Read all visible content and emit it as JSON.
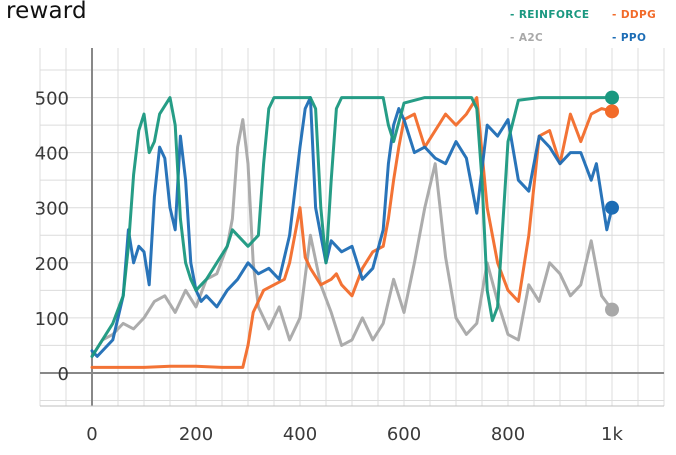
{
  "chart_data": {
    "type": "line",
    "title": "reward",
    "xlabel": "",
    "ylabel": "",
    "x_ticks": [
      0,
      200,
      400,
      600,
      800,
      1000
    ],
    "x_tick_labels": [
      "0",
      "200",
      "400",
      "600",
      "800",
      "1k"
    ],
    "y_ticks": [
      0,
      100,
      200,
      300,
      400,
      500
    ],
    "y_tick_labels": [
      "0",
      "100",
      "200",
      "300",
      "400",
      "500"
    ],
    "xlim": [
      -100,
      1100
    ],
    "ylim": [
      -60,
      590
    ],
    "grid": true,
    "legend_position": "top-right",
    "series": [
      {
        "name": "REINFORCE",
        "color": "#1a9880",
        "x": [
          0,
          20,
          40,
          60,
          70,
          80,
          90,
          100,
          110,
          120,
          130,
          150,
          160,
          170,
          180,
          190,
          200,
          220,
          240,
          260,
          270,
          280,
          290,
          300,
          320,
          330,
          340,
          350,
          360,
          380,
          400,
          420,
          430,
          440,
          450,
          460,
          470,
          480,
          500,
          510,
          520,
          540,
          560,
          570,
          580,
          600,
          640,
          680,
          700,
          720,
          730,
          740,
          750,
          760,
          770,
          780,
          800,
          820,
          860,
          900,
          950,
          1000
        ],
        "values": [
          30,
          60,
          90,
          140,
          230,
          360,
          440,
          470,
          400,
          420,
          470,
          500,
          450,
          280,
          200,
          170,
          150,
          170,
          200,
          230,
          260,
          250,
          240,
          230,
          250,
          380,
          480,
          500,
          500,
          500,
          500,
          500,
          480,
          300,
          200,
          350,
          480,
          500,
          500,
          500,
          500,
          500,
          500,
          450,
          420,
          490,
          500,
          500,
          500,
          500,
          500,
          480,
          350,
          150,
          95,
          120,
          420,
          495,
          500,
          500,
          500,
          500
        ]
      },
      {
        "name": "DDPG",
        "color": "#f26b2a",
        "x": [
          0,
          50,
          100,
          150,
          200,
          250,
          290,
          300,
          310,
          330,
          350,
          370,
          380,
          390,
          400,
          410,
          420,
          440,
          460,
          470,
          480,
          500,
          520,
          540,
          560,
          570,
          580,
          590,
          600,
          620,
          640,
          660,
          680,
          700,
          720,
          740,
          760,
          780,
          800,
          820,
          840,
          860,
          880,
          900,
          920,
          940,
          960,
          980,
          1000
        ],
        "values": [
          10,
          10,
          10,
          12,
          12,
          10,
          10,
          50,
          110,
          150,
          160,
          170,
          200,
          250,
          300,
          210,
          190,
          160,
          170,
          180,
          160,
          140,
          190,
          220,
          230,
          280,
          350,
          410,
          460,
          470,
          410,
          440,
          470,
          450,
          470,
          500,
          300,
          200,
          150,
          130,
          250,
          430,
          440,
          380,
          470,
          420,
          470,
          480,
          475
        ]
      },
      {
        "name": "A2C",
        "color": "#a8a8a8",
        "x": [
          0,
          20,
          40,
          60,
          80,
          100,
          120,
          140,
          160,
          180,
          200,
          220,
          240,
          260,
          270,
          280,
          290,
          300,
          310,
          320,
          340,
          360,
          380,
          400,
          420,
          440,
          460,
          480,
          500,
          520,
          540,
          560,
          580,
          600,
          620,
          640,
          660,
          680,
          700,
          720,
          740,
          760,
          780,
          800,
          820,
          840,
          860,
          880,
          900,
          920,
          940,
          960,
          980,
          1000
        ],
        "values": [
          30,
          60,
          70,
          90,
          80,
          100,
          130,
          140,
          110,
          150,
          120,
          170,
          180,
          230,
          280,
          410,
          460,
          380,
          200,
          120,
          80,
          120,
          60,
          100,
          250,
          160,
          110,
          50,
          60,
          100,
          60,
          90,
          170,
          110,
          200,
          300,
          380,
          210,
          100,
          70,
          90,
          200,
          130,
          70,
          60,
          160,
          130,
          200,
          180,
          140,
          160,
          240,
          140,
          115
        ]
      },
      {
        "name": "PPO",
        "color": "#1d6db5",
        "x": [
          0,
          10,
          20,
          40,
          60,
          70,
          80,
          90,
          100,
          110,
          120,
          130,
          140,
          150,
          160,
          170,
          180,
          190,
          200,
          210,
          220,
          240,
          260,
          280,
          300,
          320,
          340,
          360,
          380,
          400,
          410,
          420,
          430,
          440,
          450,
          460,
          480,
          500,
          520,
          540,
          560,
          570,
          580,
          590,
          600,
          620,
          640,
          660,
          680,
          700,
          720,
          740,
          760,
          780,
          800,
          820,
          840,
          860,
          880,
          900,
          920,
          940,
          960,
          970,
          980,
          990,
          1000
        ],
        "values": [
          40,
          30,
          40,
          60,
          140,
          260,
          200,
          230,
          220,
          160,
          320,
          410,
          390,
          300,
          260,
          430,
          350,
          200,
          150,
          130,
          140,
          120,
          150,
          170,
          200,
          180,
          190,
          170,
          250,
          410,
          480,
          500,
          300,
          250,
          200,
          240,
          220,
          230,
          170,
          190,
          260,
          380,
          450,
          480,
          460,
          400,
          410,
          390,
          380,
          420,
          390,
          290,
          450,
          430,
          460,
          350,
          330,
          430,
          410,
          380,
          400,
          400,
          350,
          380,
          320,
          260,
          300
        ]
      }
    ],
    "end_points": [
      {
        "series": "REINFORCE",
        "x": 1000,
        "y": 500
      },
      {
        "series": "DDPG",
        "x": 1000,
        "y": 475
      },
      {
        "series": "PPO",
        "x": 1000,
        "y": 300
      },
      {
        "series": "A2C",
        "x": 1000,
        "y": 115
      }
    ]
  },
  "legend_order": [
    "REINFORCE",
    "DDPG",
    "A2C",
    "PPO"
  ]
}
